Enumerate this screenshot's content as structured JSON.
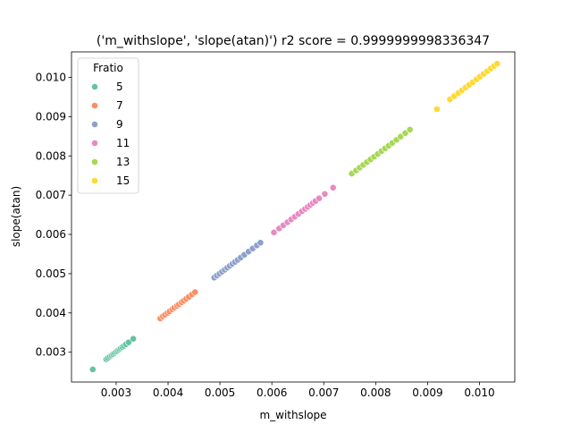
{
  "chart_data": {
    "type": "scatter",
    "title": "('m_withslope', 'slope(atan)') r2 score = 0.9999999998336347",
    "xlabel": "m_withslope",
    "ylabel": "slope(atan)",
    "xlim": [
      0.00214,
      0.01068
    ],
    "ylim": [
      0.00224,
      0.01065
    ],
    "xticks": [
      0.003,
      0.004,
      0.005,
      0.006,
      0.007,
      0.008,
      0.009,
      0.01
    ],
    "xtick_labels": [
      "0.003",
      "0.004",
      "0.005",
      "0.006",
      "0.007",
      "0.008",
      "0.009",
      "0.010"
    ],
    "yticks": [
      0.003,
      0.004,
      0.005,
      0.006,
      0.007,
      0.008,
      0.009,
      0.01
    ],
    "ytick_labels": [
      "0.003",
      "0.004",
      "0.005",
      "0.006",
      "0.007",
      "0.008",
      "0.009",
      "0.010"
    ],
    "grid": false,
    "legend": {
      "title": "Fratio",
      "placement": "top-left"
    },
    "series": [
      {
        "name": "5",
        "color": "#66c2a5",
        "points": [
          [
            0.00255,
            0.00256
          ],
          [
            0.00281,
            0.00282
          ],
          [
            0.00284,
            0.00285
          ],
          [
            0.00288,
            0.00289
          ],
          [
            0.00291,
            0.00292
          ],
          [
            0.00294,
            0.00295
          ],
          [
            0.00297,
            0.00298
          ],
          [
            0.003,
            0.00301
          ],
          [
            0.00303,
            0.00304
          ],
          [
            0.00306,
            0.00307
          ],
          [
            0.00309,
            0.0031
          ],
          [
            0.00312,
            0.00313
          ],
          [
            0.00315,
            0.00316
          ],
          [
            0.00319,
            0.0032
          ],
          [
            0.00324,
            0.00325
          ],
          [
            0.00333,
            0.00334
          ]
        ]
      },
      {
        "name": "7",
        "color": "#fc8d62",
        "points": [
          [
            0.00385,
            0.00386
          ],
          [
            0.0039,
            0.00391
          ],
          [
            0.00394,
            0.00395
          ],
          [
            0.00399,
            0.004
          ],
          [
            0.00403,
            0.00404
          ],
          [
            0.00408,
            0.00409
          ],
          [
            0.00412,
            0.00413
          ],
          [
            0.00417,
            0.00418
          ],
          [
            0.00421,
            0.00422
          ],
          [
            0.00426,
            0.00427
          ],
          [
            0.0043,
            0.00431
          ],
          [
            0.00435,
            0.00436
          ],
          [
            0.0044,
            0.00441
          ],
          [
            0.00446,
            0.00447
          ],
          [
            0.00452,
            0.00453
          ]
        ]
      },
      {
        "name": "9",
        "color": "#8da0cb",
        "points": [
          [
            0.00489,
            0.0049
          ],
          [
            0.00494,
            0.00495
          ],
          [
            0.00499,
            0.005
          ],
          [
            0.00504,
            0.00505
          ],
          [
            0.00509,
            0.0051
          ],
          [
            0.00514,
            0.00515
          ],
          [
            0.00519,
            0.0052
          ],
          [
            0.00524,
            0.00525
          ],
          [
            0.00529,
            0.0053
          ],
          [
            0.00534,
            0.00535
          ],
          [
            0.0054,
            0.00541
          ],
          [
            0.00547,
            0.00548
          ],
          [
            0.00555,
            0.00556
          ],
          [
            0.00563,
            0.00564
          ],
          [
            0.00571,
            0.00572
          ],
          [
            0.00578,
            0.00579
          ]
        ]
      },
      {
        "name": "11",
        "color": "#e78ac3",
        "points": [
          [
            0.00604,
            0.00605
          ],
          [
            0.00614,
            0.00615
          ],
          [
            0.00622,
            0.00623
          ],
          [
            0.0063,
            0.00631
          ],
          [
            0.00637,
            0.00638
          ],
          [
            0.00644,
            0.00645
          ],
          [
            0.00651,
            0.00652
          ],
          [
            0.00658,
            0.00659
          ],
          [
            0.00664,
            0.00665
          ],
          [
            0.00669,
            0.0067
          ],
          [
            0.00674,
            0.00675
          ],
          [
            0.00679,
            0.0068
          ],
          [
            0.00684,
            0.00685
          ],
          [
            0.00691,
            0.00692
          ],
          [
            0.00702,
            0.00703
          ],
          [
            0.00718,
            0.00719
          ]
        ]
      },
      {
        "name": "13",
        "color": "#a6d854",
        "points": [
          [
            0.00754,
            0.00755
          ],
          [
            0.00762,
            0.00763
          ],
          [
            0.00769,
            0.0077
          ],
          [
            0.00776,
            0.00777
          ],
          [
            0.00783,
            0.00784
          ],
          [
            0.0079,
            0.00791
          ],
          [
            0.00797,
            0.00798
          ],
          [
            0.00804,
            0.00805
          ],
          [
            0.00811,
            0.00812
          ],
          [
            0.00818,
            0.00819
          ],
          [
            0.00825,
            0.00826
          ],
          [
            0.00832,
            0.00833
          ],
          [
            0.0084,
            0.00841
          ],
          [
            0.00848,
            0.00849
          ],
          [
            0.00857,
            0.00858
          ],
          [
            0.00866,
            0.00867
          ]
        ]
      },
      {
        "name": "15",
        "color": "#ffd92f",
        "points": [
          [
            0.00918,
            0.00919
          ],
          [
            0.00943,
            0.00944
          ],
          [
            0.00951,
            0.00952
          ],
          [
            0.00959,
            0.0096
          ],
          [
            0.00966,
            0.00967
          ],
          [
            0.00973,
            0.00974
          ],
          [
            0.0098,
            0.00981
          ],
          [
            0.00987,
            0.00988
          ],
          [
            0.00994,
            0.00995
          ],
          [
            0.01001,
            0.01002
          ],
          [
            0.01008,
            0.01009
          ],
          [
            0.01015,
            0.01016
          ],
          [
            0.01022,
            0.01023
          ],
          [
            0.01028,
            0.01029
          ],
          [
            0.01034,
            0.01035
          ]
        ]
      }
    ]
  }
}
